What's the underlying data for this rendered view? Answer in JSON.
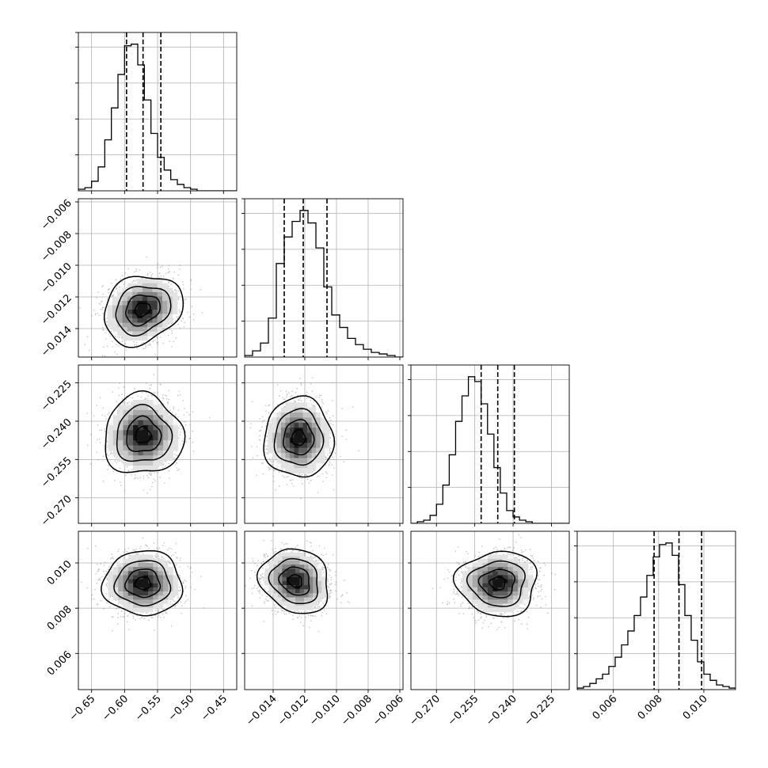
{
  "chart_data": {
    "type": "corner",
    "n_params": 4,
    "parameters": [
      {
        "range": [
          -0.67,
          -0.43
        ],
        "ticks": [
          -0.65,
          -0.6,
          -0.55,
          -0.5,
          -0.45
        ],
        "tick_labels": [
          "−0.65",
          "−0.60",
          "−0.55",
          "−0.50",
          "−0.45"
        ],
        "quantiles": [
          -0.597,
          -0.572,
          -0.545
        ],
        "hist_bin_start": -0.68,
        "hist_bin_width": 0.01,
        "hist_counts": [
          0,
          1,
          2,
          6,
          15,
          32,
          52,
          73,
          91,
          92,
          79,
          57,
          36,
          21,
          13,
          7,
          4,
          2,
          1,
          0,
          0,
          0,
          0,
          0,
          0,
          0
        ]
      },
      {
        "range": [
          -0.0158,
          -0.0058
        ],
        "ticks": [
          -0.014,
          -0.012,
          -0.01,
          -0.008,
          -0.006
        ],
        "tick_labels": [
          "−0.014",
          "−0.012",
          "−0.010",
          "−0.008",
          "−0.006"
        ],
        "quantiles": [
          -0.0133,
          -0.0121,
          -0.0106
        ],
        "hist_bin_start": -0.0158,
        "hist_bin_width": 0.0005,
        "hist_counts": [
          1,
          4,
          9,
          25,
          60,
          77,
          87,
          94,
          86,
          70,
          45,
          27,
          19,
          12,
          8,
          5,
          3,
          2,
          1,
          0
        ]
      },
      {
        "range": [
          -0.28,
          -0.218
        ],
        "ticks": [
          -0.27,
          -0.255,
          -0.24,
          -0.225
        ],
        "tick_labels": [
          "−0.270",
          "−0.255",
          "−0.240",
          "−0.225"
        ],
        "quantiles": [
          -0.2525,
          -0.246,
          -0.2395
        ],
        "hist_bin_start": -0.28,
        "hist_bin_width": 0.0025,
        "hist_counts": [
          0,
          1,
          2,
          5,
          12,
          24,
          43,
          64,
          80,
          92,
          89,
          75,
          56,
          35,
          19,
          8,
          4,
          2,
          1,
          0,
          0,
          0,
          0,
          0,
          0
        ]
      },
      {
        "range": [
          0.0044,
          0.0114
        ],
        "ticks": [
          0.006,
          0.008,
          0.01
        ],
        "tick_labels": [
          "0.006",
          "0.008",
          "0.010"
        ],
        "quantiles": [
          0.0078,
          0.0089,
          0.0099
        ],
        "hist_bin_start": 0.0044,
        "hist_bin_width": 0.00028,
        "hist_counts": [
          1,
          2,
          4,
          7,
          10,
          15,
          21,
          29,
          38,
          48,
          60,
          74,
          86,
          94,
          95,
          87,
          68,
          48,
          32,
          18,
          10,
          6,
          3,
          2,
          1
        ]
      }
    ],
    "pairs": [
      {
        "row": 1,
        "col": 0,
        "center": [
          -0.573,
          -0.0128
        ],
        "spread": [
          0.026,
          0.00095
        ],
        "corr": 0.2
      },
      {
        "row": 2,
        "col": 0,
        "center": [
          -0.572,
          -0.2455
        ],
        "spread": [
          0.026,
          0.0068
        ],
        "corr": 0.0
      },
      {
        "row": 2,
        "col": 1,
        "center": [
          -0.0124,
          -0.2465
        ],
        "spread": [
          0.00095,
          0.0068
        ],
        "corr": 0.0
      },
      {
        "row": 3,
        "col": 0,
        "center": [
          -0.572,
          0.0091
        ],
        "spread": [
          0.026,
          0.00062
        ],
        "corr": 0.0
      },
      {
        "row": 3,
        "col": 1,
        "center": [
          -0.0126,
          0.0092
        ],
        "spread": [
          0.00095,
          0.00062
        ],
        "corr": -0.15
      },
      {
        "row": 3,
        "col": 2,
        "center": [
          -0.246,
          0.0091
        ],
        "spread": [
          0.0068,
          0.00062
        ],
        "corr": 0.0
      }
    ],
    "grid": true,
    "colors": {
      "line": "#000000",
      "scatter": "#7f7f7f",
      "grid": "#b0b0b0"
    }
  }
}
